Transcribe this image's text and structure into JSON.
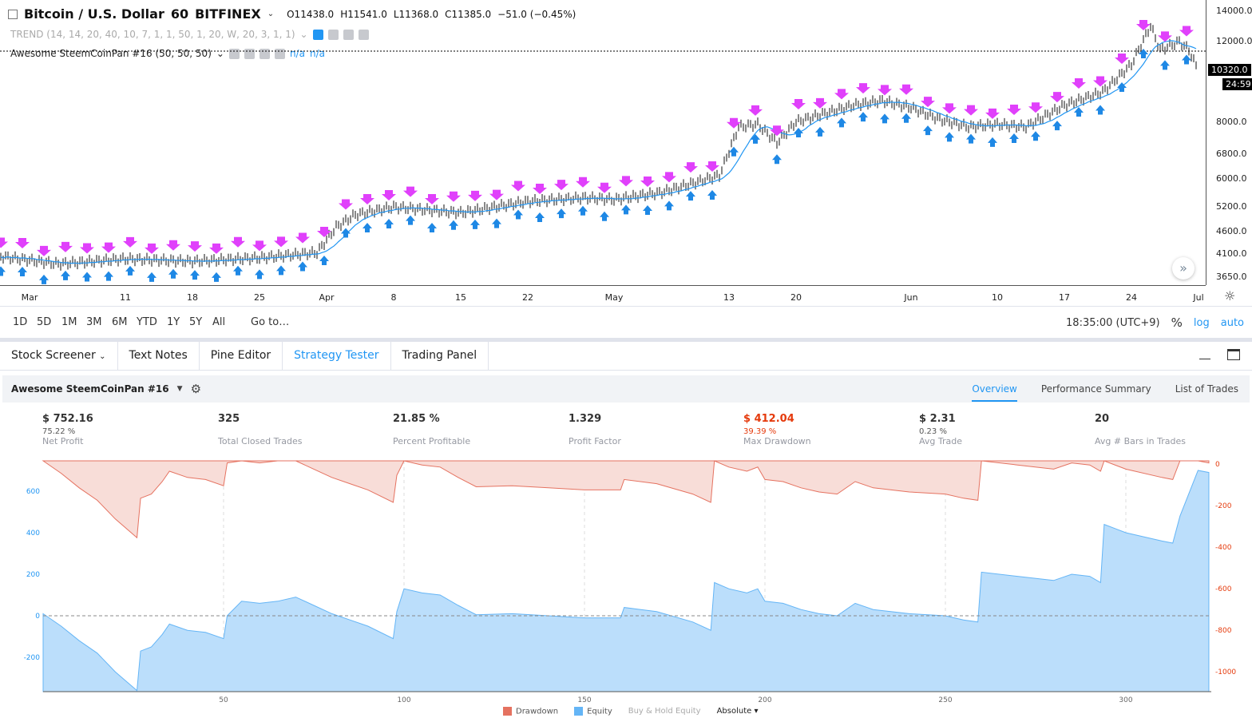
{
  "header": {
    "symbol": "Bitcoin / U.S. Dollar",
    "interval": "60",
    "exchange": "BITFINEX",
    "open": "O11438.0",
    "high": "H11541.0",
    "low": "L11368.0",
    "close": "C11385.0",
    "change": "−51.0 (−0.45%)"
  },
  "indicators": [
    {
      "label": "TREND (14, 14, 20, 40, 10, 7, 1, 1, 50, 1, 20, W, 20, 3, 1, 1)"
    },
    {
      "label": "Awesome SteemCoinPan #16 (50, 50, 50)",
      "values": [
        "n/a",
        "n/a"
      ]
    }
  ],
  "price_axis": {
    "ticks": [
      "14000.0",
      "12000.0",
      "8000.0",
      "6800.0",
      "6000.0",
      "5200.0",
      "4600.0",
      "4100.0",
      "3650.0"
    ],
    "tick_values": [
      14000,
      12000,
      8000,
      6800,
      6000,
      5200,
      4600,
      4100,
      3650
    ],
    "last_price": "10320.0",
    "countdown": "24:59",
    "scale": "log"
  },
  "date_axis": {
    "ticks": [
      "Mar",
      "11",
      "18",
      "25",
      "Apr",
      "8",
      "15",
      "22",
      "May",
      "13",
      "20",
      "Jun",
      "10",
      "17",
      "24",
      "Jul"
    ],
    "tick_days": [
      0,
      10,
      17,
      24,
      31,
      38,
      45,
      52,
      61,
      73,
      80,
      92,
      101,
      108,
      115,
      122
    ]
  },
  "price_series": {
    "days": [
      -3,
      3,
      10,
      17,
      24,
      30,
      32,
      34,
      38,
      45,
      52,
      58,
      61,
      66,
      72,
      74,
      76,
      78,
      80,
      86,
      89,
      92,
      95,
      98,
      101,
      104,
      108,
      112,
      115,
      117,
      118,
      120,
      121,
      122
    ],
    "close": [
      4050,
      3900,
      4000,
      3950,
      4020,
      4130,
      4700,
      5000,
      5200,
      5050,
      5350,
      5450,
      5400,
      5600,
      6100,
      7800,
      7900,
      7200,
      8000,
      8700,
      8900,
      8600,
      8100,
      7800,
      7900,
      7800,
      8700,
      9300,
      10700,
      13000,
      11500,
      12000,
      11500,
      10320
    ]
  },
  "price_colors": {
    "ma": "#2196f3",
    "sell": "#e040fb",
    "buy": "#1e88e5"
  },
  "toolbar": {
    "ranges": [
      "1D",
      "5D",
      "1M",
      "3M",
      "6M",
      "YTD",
      "1Y",
      "5Y",
      "All"
    ],
    "goto": "Go to…",
    "time": "18:35:00 (UTC+9)",
    "percent": "%",
    "log": "log",
    "auto": "auto"
  },
  "tabs": [
    "Stock Screener",
    "Text Notes",
    "Pine Editor",
    "Strategy Tester",
    "Trading Panel"
  ],
  "strategy": {
    "name": "Awesome SteemCoinPan #16",
    "subtabs": [
      "Overview",
      "Performance Summary",
      "List of Trades"
    ]
  },
  "stats": [
    {
      "value": "$ 752.16",
      "pct": "75.22 %",
      "label": "Net Profit"
    },
    {
      "value": "325",
      "pct": "",
      "label": "Total Closed Trades"
    },
    {
      "value": "21.85 %",
      "pct": "",
      "label": "Percent Profitable"
    },
    {
      "value": "1.329",
      "pct": "",
      "label": "Profit Factor"
    },
    {
      "value": "$ 412.04",
      "pct": "39.39 %",
      "label": "Max Drawdown"
    },
    {
      "value": "$ 2.31",
      "pct": "0.23 %",
      "label": "Avg Trade"
    },
    {
      "value": "20",
      "pct": "",
      "label": "Avg # Bars in Trades"
    }
  ],
  "chart_data": {
    "type": "area",
    "x_ticks": [
      "50",
      "100",
      "150",
      "200",
      "250",
      "300"
    ],
    "left_ticks": [
      "600",
      "400",
      "200",
      "0",
      "-200"
    ],
    "right_ticks": [
      "0",
      "-200",
      "-400",
      "-600",
      "-800",
      "-1000"
    ],
    "series": [
      {
        "name": "Equity",
        "color": "#64b5f6",
        "x": [
          0,
          5,
          10,
          15,
          20,
          26,
          27,
          30,
          33,
          35,
          40,
          45,
          50,
          51,
          55,
          60,
          65,
          70,
          75,
          80,
          85,
          90,
          97,
          98,
          100,
          105,
          110,
          115,
          120,
          130,
          140,
          150,
          160,
          161,
          170,
          180,
          185,
          186,
          190,
          195,
          198,
          200,
          205,
          210,
          215,
          220,
          225,
          230,
          240,
          250,
          255,
          259,
          260,
          270,
          280,
          285,
          290,
          293,
          294,
          300,
          310,
          313,
          315,
          320,
          323
        ],
        "y": [
          10,
          -50,
          -120,
          -180,
          -270,
          -360,
          -170,
          -150,
          -90,
          -40,
          -70,
          -80,
          -110,
          0,
          70,
          60,
          70,
          90,
          50,
          10,
          -20,
          -50,
          -110,
          20,
          130,
          110,
          100,
          50,
          5,
          10,
          0,
          -10,
          -10,
          40,
          20,
          -30,
          -70,
          160,
          130,
          110,
          130,
          70,
          60,
          30,
          10,
          0,
          60,
          30,
          10,
          0,
          -20,
          -30,
          210,
          190,
          170,
          200,
          190,
          160,
          440,
          400,
          360,
          350,
          480,
          700,
          690
        ]
      },
      {
        "name": "Drawdown",
        "color": "#ef6c54"
      }
    ],
    "legend": [
      "Drawdown",
      "Equity",
      "Buy & Hold Equity",
      "Absolute"
    ]
  }
}
